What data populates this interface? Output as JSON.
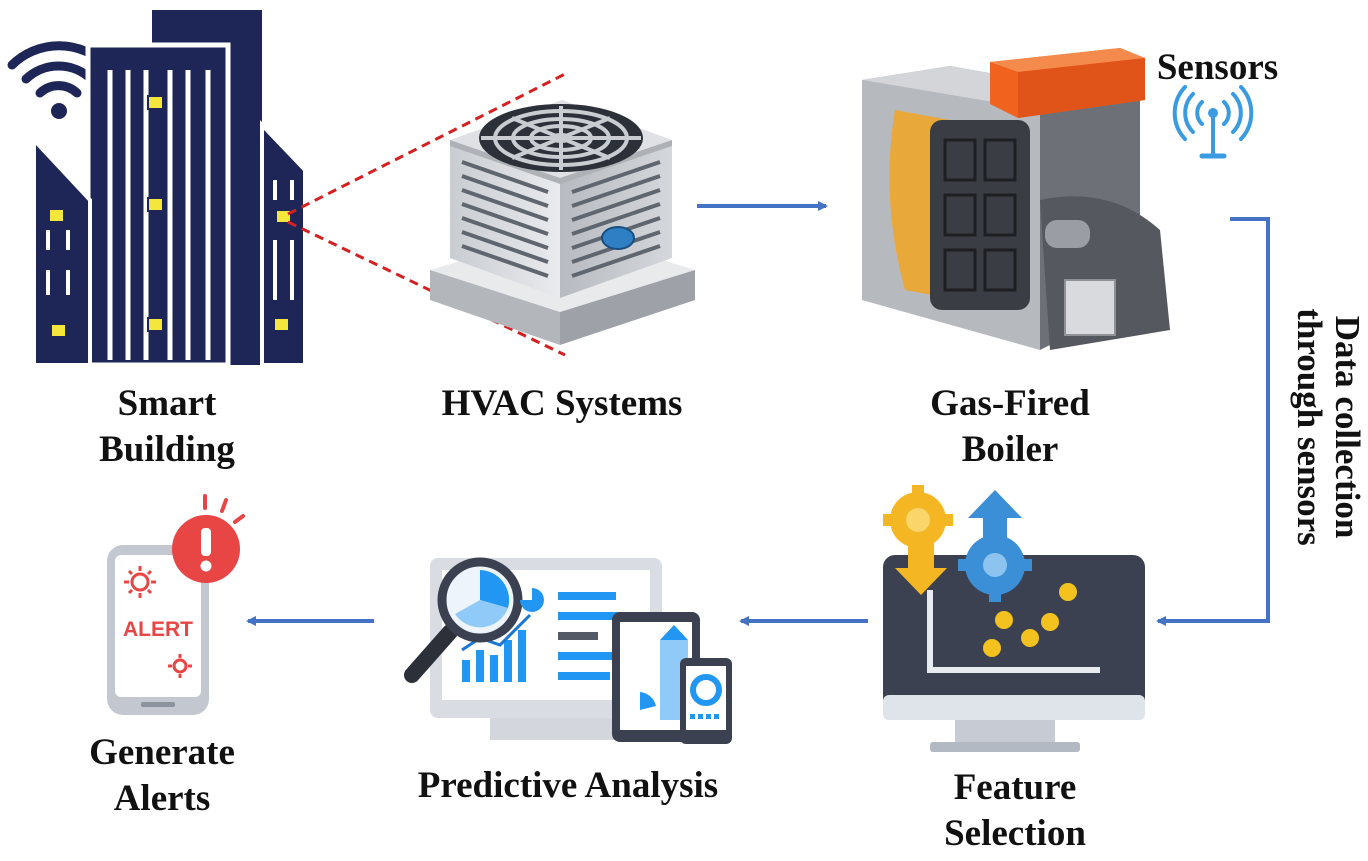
{
  "nodes": {
    "smart_building": {
      "line1": "Smart",
      "line2": "Building"
    },
    "hvac": {
      "label": "HVAC Systems"
    },
    "boiler": {
      "line1": "Gas-Fired",
      "line2": "Boiler"
    },
    "sensors": {
      "label": "Sensors"
    },
    "data_collection": {
      "line1": "Data collection",
      "line2": "through sensors"
    },
    "feature_selection": {
      "line1": "Feature",
      "line2": "Selection"
    },
    "predictive_analysis": {
      "label": "Predictive Analysis"
    },
    "generate_alerts": {
      "line1": "Generate",
      "line2": "Alerts"
    },
    "alert_badge": {
      "text": "ALERT"
    }
  },
  "colors": {
    "arrow": "#4472c4",
    "building": "#1e2557",
    "window_light": "#f5e63c",
    "dashed_zoom": "#d42020",
    "boiler_orange": "#f0621e",
    "alert_red": "#e84545",
    "monitor_dark": "#3b4150",
    "gear_orange": "#f4b623",
    "gear_blue": "#3a8fd6",
    "analysis_blue": "#2196f3"
  },
  "icons": [
    "wifi-icon",
    "hvac-unit-icon",
    "boiler-icon",
    "antenna-icon",
    "monitor-gears-icon",
    "analytics-icon",
    "phone-alert-icon"
  ]
}
